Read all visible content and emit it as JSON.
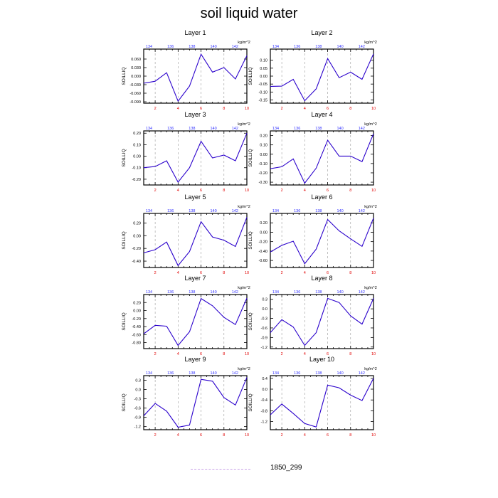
{
  "title": "soil liquid water",
  "legend": {
    "label": "1850_299",
    "color": "#c8a0e8"
  },
  "colors": {
    "line": "#2a00cc",
    "bottom_ticks": "#e00000",
    "top_ticks": "#3030ff",
    "grid": "#999999"
  },
  "chart_data": [
    {
      "type": "line",
      "title": "Layer 1",
      "ylabel": "SOILLIQ",
      "top_unit": "kg/m^2",
      "x": [
        1,
        2,
        3,
        4,
        5,
        6,
        7,
        8,
        9,
        10
      ],
      "xticks": [
        2,
        4,
        6,
        8,
        10
      ],
      "top_ticks": [
        "134",
        "136",
        "138",
        "140",
        "142"
      ],
      "ylim": [
        -0.095,
        0.095
      ],
      "yticks": [
        0.06,
        0.03,
        0.0,
        -0.03,
        -0.06,
        -0.09
      ],
      "ytick_labels": [
        "0.060",
        "0.030",
        "0.000",
        "-0.030",
        "-0.060",
        "-0.090"
      ],
      "values": [
        -0.025,
        -0.018,
        0.012,
        -0.088,
        -0.035,
        0.077,
        0.014,
        0.03,
        -0.01,
        0.072
      ]
    },
    {
      "type": "line",
      "title": "Layer 2",
      "ylabel": "SOILLIQ",
      "top_unit": "kg/m^2",
      "x": [
        1,
        2,
        3,
        4,
        5,
        6,
        7,
        8,
        9,
        10
      ],
      "xticks": [
        2,
        4,
        6,
        8,
        10
      ],
      "top_ticks": [
        "134",
        "136",
        "138",
        "140",
        "142"
      ],
      "ylim": [
        -0.17,
        0.17
      ],
      "yticks": [
        0.1,
        0.05,
        0.0,
        -0.05,
        -0.1,
        -0.15
      ],
      "ytick_labels": [
        "0.10",
        "0.05",
        "0.00",
        "-0.05",
        "-0.10",
        "-0.15"
      ],
      "values": [
        -0.065,
        -0.063,
        -0.02,
        -0.155,
        -0.08,
        0.11,
        -0.01,
        0.025,
        -0.02,
        0.14
      ]
    },
    {
      "type": "line",
      "title": "Layer 3",
      "ylabel": "SOILLIQ",
      "top_unit": "kg/m^2",
      "x": [
        1,
        2,
        3,
        4,
        5,
        6,
        7,
        8,
        9,
        10
      ],
      "xticks": [
        2,
        4,
        6,
        8,
        10
      ],
      "top_ticks": [
        "134",
        "136",
        "138",
        "140",
        "142"
      ],
      "ylim": [
        -0.25,
        0.22
      ],
      "yticks": [
        0.2,
        0.1,
        0.0,
        -0.1,
        -0.2
      ],
      "ytick_labels": [
        "0.20",
        "0.10",
        "0.00",
        "-0.10",
        "-0.20"
      ],
      "values": [
        -0.1,
        -0.09,
        -0.04,
        -0.225,
        -0.1,
        0.13,
        -0.015,
        0.01,
        -0.04,
        0.2
      ]
    },
    {
      "type": "line",
      "title": "Layer 4",
      "ylabel": "SOILLIQ",
      "top_unit": "kg/m^2",
      "x": [
        1,
        2,
        3,
        4,
        5,
        6,
        7,
        8,
        9,
        10
      ],
      "xticks": [
        2,
        4,
        6,
        8,
        10
      ],
      "top_ticks": [
        "134",
        "136",
        "138",
        "140",
        "142"
      ],
      "ylim": [
        -0.33,
        0.25
      ],
      "yticks": [
        0.2,
        0.1,
        0.0,
        -0.1,
        -0.2,
        -0.3
      ],
      "ytick_labels": [
        "0.20",
        "0.10",
        "0.00",
        "-0.10",
        "-0.20",
        "-0.30"
      ],
      "values": [
        -0.155,
        -0.135,
        -0.05,
        -0.31,
        -0.15,
        0.15,
        -0.02,
        -0.02,
        -0.08,
        0.22
      ]
    },
    {
      "type": "line",
      "title": "Layer 5",
      "ylabel": "SOILLIQ",
      "top_unit": "kg/m^2",
      "x": [
        1,
        2,
        3,
        4,
        5,
        6,
        7,
        8,
        9,
        10
      ],
      "xticks": [
        2,
        4,
        6,
        8,
        10
      ],
      "top_ticks": [
        "134",
        "136",
        "138",
        "140",
        "142"
      ],
      "ylim": [
        -0.5,
        0.35
      ],
      "yticks": [
        0.2,
        0.0,
        -0.2,
        -0.4
      ],
      "ytick_labels": [
        "0.20",
        "0.00",
        "-0.20",
        "-0.40"
      ],
      "values": [
        -0.27,
        -0.22,
        -0.1,
        -0.47,
        -0.25,
        0.22,
        -0.02,
        -0.07,
        -0.17,
        0.29
      ]
    },
    {
      "type": "line",
      "title": "Layer 6",
      "ylabel": "SOILLIQ",
      "top_unit": "kg/m^2",
      "x": [
        1,
        2,
        3,
        4,
        5,
        6,
        7,
        8,
        9,
        10
      ],
      "xticks": [
        2,
        4,
        6,
        8,
        10
      ],
      "top_ticks": [
        "134",
        "136",
        "138",
        "140",
        "142"
      ],
      "ylim": [
        -0.75,
        0.4
      ],
      "yticks": [
        0.2,
        0.0,
        -0.2,
        -0.4,
        -0.6
      ],
      "ytick_labels": [
        "0.20",
        "0.00",
        "-0.20",
        "-0.40",
        "-0.60"
      ],
      "values": [
        -0.42,
        -0.28,
        -0.19,
        -0.67,
        -0.36,
        0.27,
        0.03,
        -0.14,
        -0.3,
        0.3
      ]
    },
    {
      "type": "line",
      "title": "Layer 7",
      "ylabel": "SOILLIQ",
      "top_unit": "kg/m^2",
      "x": [
        1,
        2,
        3,
        4,
        5,
        6,
        7,
        8,
        9,
        10
      ],
      "xticks": [
        2,
        4,
        6,
        8,
        10
      ],
      "top_ticks": [
        "134",
        "136",
        "138",
        "140",
        "142"
      ],
      "ylim": [
        -0.95,
        0.4
      ],
      "yticks": [
        0.2,
        0.0,
        -0.2,
        -0.4,
        -0.6,
        -0.8
      ],
      "ytick_labels": [
        "0.20",
        "0.00",
        "-0.20",
        "-0.40",
        "-0.60",
        "-0.80"
      ],
      "values": [
        -0.58,
        -0.37,
        -0.39,
        -0.87,
        -0.53,
        0.3,
        0.12,
        -0.17,
        -0.35,
        0.31
      ]
    },
    {
      "type": "line",
      "title": "Layer 8",
      "ylabel": "SOILLIQ",
      "top_unit": "kg/m^2",
      "x": [
        1,
        2,
        3,
        4,
        5,
        6,
        7,
        8,
        9,
        10
      ],
      "xticks": [
        2,
        4,
        6,
        8,
        10
      ],
      "top_ticks": [
        "134",
        "136",
        "138",
        "140",
        "142"
      ],
      "ylim": [
        -1.25,
        0.45
      ],
      "yticks": [
        0.3,
        0.0,
        -0.3,
        -0.6,
        -0.9,
        -1.2
      ],
      "ytick_labels": [
        "0.3",
        "0.0",
        "-0.3",
        "-0.6",
        "-0.9",
        "-1.2"
      ],
      "values": [
        -0.75,
        -0.34,
        -0.57,
        -1.15,
        -0.75,
        0.33,
        0.2,
        -0.22,
        -0.48,
        0.33
      ]
    },
    {
      "type": "line",
      "title": "Layer 9",
      "ylabel": "SOILLIQ",
      "top_unit": "kg/m^2",
      "x": [
        1,
        2,
        3,
        4,
        5,
        6,
        7,
        8,
        9,
        10
      ],
      "xticks": [
        2,
        4,
        6,
        8,
        10
      ],
      "top_ticks": [
        "134",
        "136",
        "138",
        "140",
        "142"
      ],
      "ylim": [
        -1.3,
        0.45
      ],
      "yticks": [
        0.3,
        0.0,
        -0.3,
        -0.6,
        -0.9,
        -1.2
      ],
      "ytick_labels": [
        "0.3",
        "0.0",
        "-0.3",
        "-0.6",
        "-0.9",
        "-1.2"
      ],
      "values": [
        -0.85,
        -0.45,
        -0.7,
        -1.22,
        -1.15,
        0.33,
        0.27,
        -0.26,
        -0.5,
        0.39
      ]
    },
    {
      "type": "line",
      "title": "Layer 10",
      "ylabel": "SOILLIQ",
      "top_unit": "kg/m^2",
      "x": [
        1,
        2,
        3,
        4,
        5,
        6,
        7,
        8,
        9,
        10
      ],
      "xticks": [
        2,
        4,
        6,
        8,
        10
      ],
      "top_ticks": [
        "134",
        "136",
        "138",
        "140",
        "142"
      ],
      "ylim": [
        -1.5,
        0.5
      ],
      "yticks": [
        0.4,
        0.0,
        -0.4,
        -0.8,
        -1.2
      ],
      "ytick_labels": [
        "0.4",
        "0.0",
        "-0.4",
        "-0.8",
        "-1.2"
      ],
      "values": [
        -0.95,
        -0.55,
        -0.9,
        -1.27,
        -1.4,
        0.15,
        0.05,
        -0.22,
        -0.42,
        0.4
      ]
    }
  ]
}
